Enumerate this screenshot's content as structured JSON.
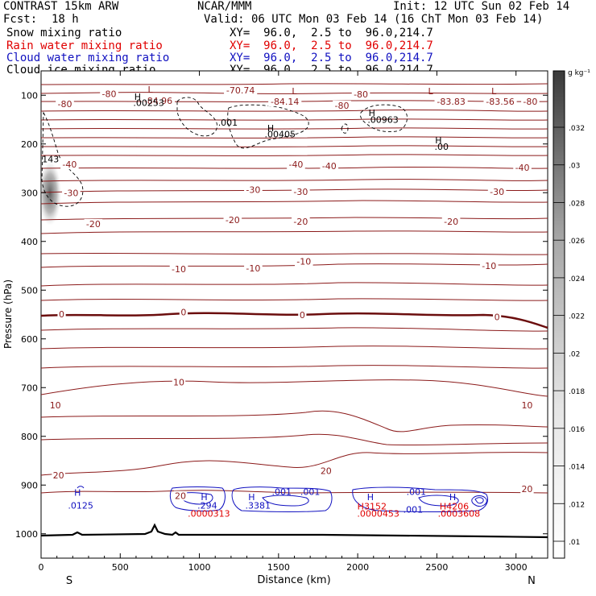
{
  "header": {
    "model": "CONTRAST 15km ARW",
    "org": "NCAR/MMM",
    "init": "Init: 12 UTC Sun 02 Feb 14",
    "fcst_label": "Fcst:",
    "fcst_value": "18 h",
    "valid": "Valid: 06 UTC Mon 03 Feb 14 (16 ChT Mon 03 Feb 14)"
  },
  "fields": [
    {
      "name": "Snow mixing ratio",
      "xy": "XY=  96.0,  2.5 to  96.0,214.7",
      "color": "#000000"
    },
    {
      "name": "Rain water mixing ratio",
      "xy": "XY=  96.0,  2.5 to  96.0,214.7",
      "color": "#e00000"
    },
    {
      "name": "Cloud water mixing ratio",
      "xy": "XY=  96.0,  2.5 to  96.0,214.7",
      "color": "#1010c0"
    },
    {
      "name": "Cloud ice mixing ratio",
      "xy": "XY=  96.0,  2.5 to  96.0,214.7",
      "color": "#000000"
    }
  ],
  "chart_data": {
    "type": "cross-section",
    "xlabel": "Distance (km)",
    "ylabel": "Pressure (hPa)",
    "xlim": [
      0,
      3200
    ],
    "ylim": [
      1050,
      50
    ],
    "x_ticks": [
      "0",
      "500",
      "1000",
      "1500",
      "2000",
      "2500",
      "3000"
    ],
    "y_ticks": [
      "100",
      "200",
      "300",
      "400",
      "500",
      "600",
      "700",
      "800",
      "900",
      "1000"
    ],
    "x_ends": [
      "S",
      "N"
    ],
    "colorbar": {
      "unit": "g kg⁻¹",
      "ticks": [
        ".01",
        ".012",
        ".014",
        ".016",
        ".018",
        ".02",
        ".022",
        ".024",
        ".026",
        ".028",
        ".03",
        ".032"
      ]
    },
    "isotherm_labels": [
      {
        "text": "-80",
        "x": 430,
        "p": 97
      },
      {
        "text": "-80",
        "x": 150,
        "p": 118
      },
      {
        "text": "-80",
        "x": 2020,
        "p": 98
      },
      {
        "text": "-80",
        "x": 1900,
        "p": 121
      },
      {
        "text": "-80",
        "x": 3090,
        "p": 113
      },
      {
        "text": "-70.74",
        "x": 1260,
        "p": 90
      },
      {
        "text": "-84.96",
        "x": 740,
        "p": 111
      },
      {
        "text": "-84.14",
        "x": 1540,
        "p": 113
      },
      {
        "text": "-83.83",
        "x": 2590,
        "p": 113
      },
      {
        "text": "-83.56",
        "x": 2900,
        "p": 113
      },
      {
        "text": "-40",
        "x": 1610,
        "p": 242
      },
      {
        "text": "-40",
        "x": 1820,
        "p": 245
      },
      {
        "text": "-40",
        "x": 3040,
        "p": 248
      },
      {
        "text": "-40",
        "x": 180,
        "p": 242
      },
      {
        "text": "-30",
        "x": 1340,
        "p": 294
      },
      {
        "text": "-30",
        "x": 1640,
        "p": 298
      },
      {
        "text": "-30",
        "x": 2880,
        "p": 298
      },
      {
        "text": "-30",
        "x": 190,
        "p": 300
      },
      {
        "text": "-20",
        "x": 330,
        "p": 364
      },
      {
        "text": "-20",
        "x": 1210,
        "p": 356
      },
      {
        "text": "-20",
        "x": 1640,
        "p": 359
      },
      {
        "text": "-20",
        "x": 2590,
        "p": 359
      },
      {
        "text": "-10",
        "x": 870,
        "p": 457
      },
      {
        "text": "-10",
        "x": 1340,
        "p": 455
      },
      {
        "text": "-10",
        "x": 1660,
        "p": 441
      },
      {
        "text": "-10",
        "x": 2830,
        "p": 450
      },
      {
        "text": "0",
        "x": 130,
        "p": 549
      },
      {
        "text": "0",
        "x": 900,
        "p": 545
      },
      {
        "text": "0",
        "x": 1650,
        "p": 551
      },
      {
        "text": "0",
        "x": 2880,
        "p": 555
      },
      {
        "text": "10",
        "x": 870,
        "p": 689
      },
      {
        "text": "10",
        "x": 90,
        "p": 736
      },
      {
        "text": "10",
        "x": 3070,
        "p": 736
      },
      {
        "text": "20",
        "x": 110,
        "p": 880
      },
      {
        "text": "20",
        "x": 880,
        "p": 922
      },
      {
        "text": "20",
        "x": 1800,
        "p": 871
      },
      {
        "text": "20",
        "x": 3070,
        "p": 908
      }
    ],
    "extrema_labels": [
      {
        "text": "L",
        "x": 690,
        "p": 88,
        "color": "#8b1a1a"
      },
      {
        "text": "L",
        "x": 1600,
        "p": 91,
        "color": "#8b1a1a"
      },
      {
        "text": "L",
        "x": 2460,
        "p": 91,
        "color": "#8b1a1a"
      },
      {
        "text": "L",
        "x": 2860,
        "p": 91,
        "color": "#8b1a1a"
      },
      {
        "text": "H",
        "x": 610,
        "p": 103,
        "color": "#000000"
      },
      {
        "text": ".00253",
        "x": 680,
        "p": 115,
        "color": "#000000"
      },
      {
        "text": ".001",
        "x": 1180,
        "p": 156,
        "color": "#000000"
      },
      {
        "text": "H",
        "x": 1450,
        "p": 167,
        "color": "#000000"
      },
      {
        "text": ".00405",
        "x": 1510,
        "p": 180,
        "color": "#000000"
      },
      {
        "text": "H",
        "x": 2090,
        "p": 136,
        "color": "#000000"
      },
      {
        "text": ".00963",
        "x": 2160,
        "p": 150,
        "color": "#000000"
      },
      {
        "text": "H",
        "x": 2510,
        "p": 192,
        "color": "#000000"
      },
      {
        "text": ".00",
        "x": 2530,
        "p": 205,
        "color": "#000000"
      },
      {
        "text": "143",
        "x": 60,
        "p": 231,
        "color": "#000000"
      },
      {
        "text": "H",
        "x": 230,
        "p": 915,
        "color": "#1010c0"
      },
      {
        "text": ".0125",
        "x": 250,
        "p": 942,
        "color": "#1010c0"
      },
      {
        "text": "H",
        "x": 1030,
        "p": 924,
        "color": "#1010c0"
      },
      {
        "text": ".294",
        "x": 1050,
        "p": 942,
        "color": "#1010c0"
      },
      {
        "text": ".0000313",
        "x": 1060,
        "p": 958,
        "color": "#e00000"
      },
      {
        "text": "H",
        "x": 1330,
        "p": 924,
        "color": "#1010c0"
      },
      {
        "text": ".3381",
        "x": 1370,
        "p": 942,
        "color": "#1010c0"
      },
      {
        "text": ".001",
        "x": 1520,
        "p": 914,
        "color": "#1010c0"
      },
      {
        "text": ".001",
        "x": 1700,
        "p": 914,
        "color": "#1010c0"
      },
      {
        "text": "H",
        "x": 2080,
        "p": 924,
        "color": "#1010c0"
      },
      {
        "text": "H3152",
        "x": 2090,
        "p": 943,
        "color": "#e00000"
      },
      {
        "text": ".0000453",
        "x": 2130,
        "p": 958,
        "color": "#e00000"
      },
      {
        "text": ".001",
        "x": 2370,
        "p": 914,
        "color": "#1010c0"
      },
      {
        "text": ".001",
        "x": 2350,
        "p": 950,
        "color": "#1010c0"
      },
      {
        "text": "H",
        "x": 2600,
        "p": 924,
        "color": "#1010c0"
      },
      {
        "text": "H4206",
        "x": 2610,
        "p": 943,
        "color": "#e00000"
      },
      {
        "text": ".0003608",
        "x": 2640,
        "p": 958,
        "color": "#e00000"
      }
    ]
  }
}
